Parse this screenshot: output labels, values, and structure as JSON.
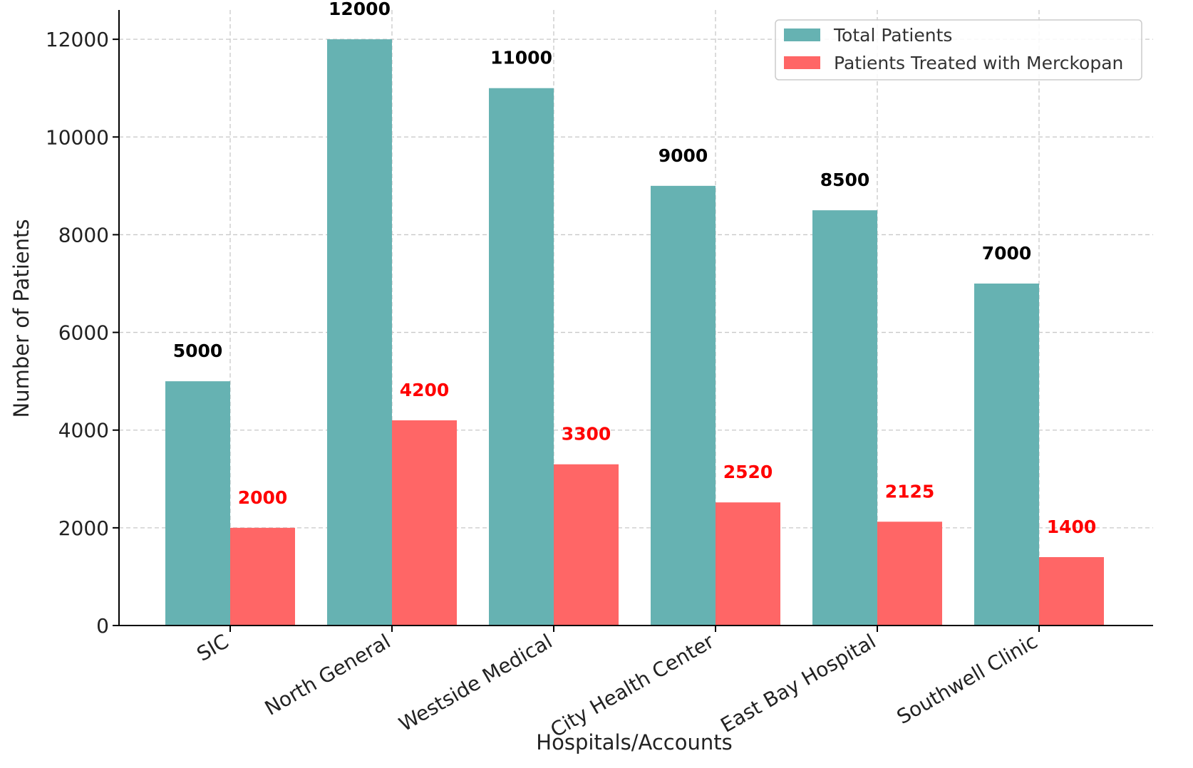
{
  "chart_data": {
    "type": "bar",
    "title": "",
    "xlabel": "Hospitals/Accounts",
    "ylabel": "Number of Patients",
    "categories": [
      "SIC",
      "North General",
      "Westside Medical",
      "City Health Center",
      "East Bay Hospital",
      "Southwell Clinic"
    ],
    "series": [
      {
        "name": "Total Patients",
        "values": [
          5000,
          12000,
          11000,
          9000,
          8500,
          7000
        ],
        "color": "#66b2b2",
        "label_color": "#000000"
      },
      {
        "name": "Patients Treated with Merckopan",
        "values": [
          2000,
          4200,
          3300,
          2520,
          2125,
          1400
        ],
        "color": "#ff6666",
        "label_color": "#ff0000"
      }
    ],
    "ylim": [
      0,
      12600
    ],
    "yticks": [
      0,
      2000,
      4000,
      6000,
      8000,
      10000,
      12000
    ],
    "grid": true,
    "legend_position": "top-right",
    "data_labels": true
  }
}
